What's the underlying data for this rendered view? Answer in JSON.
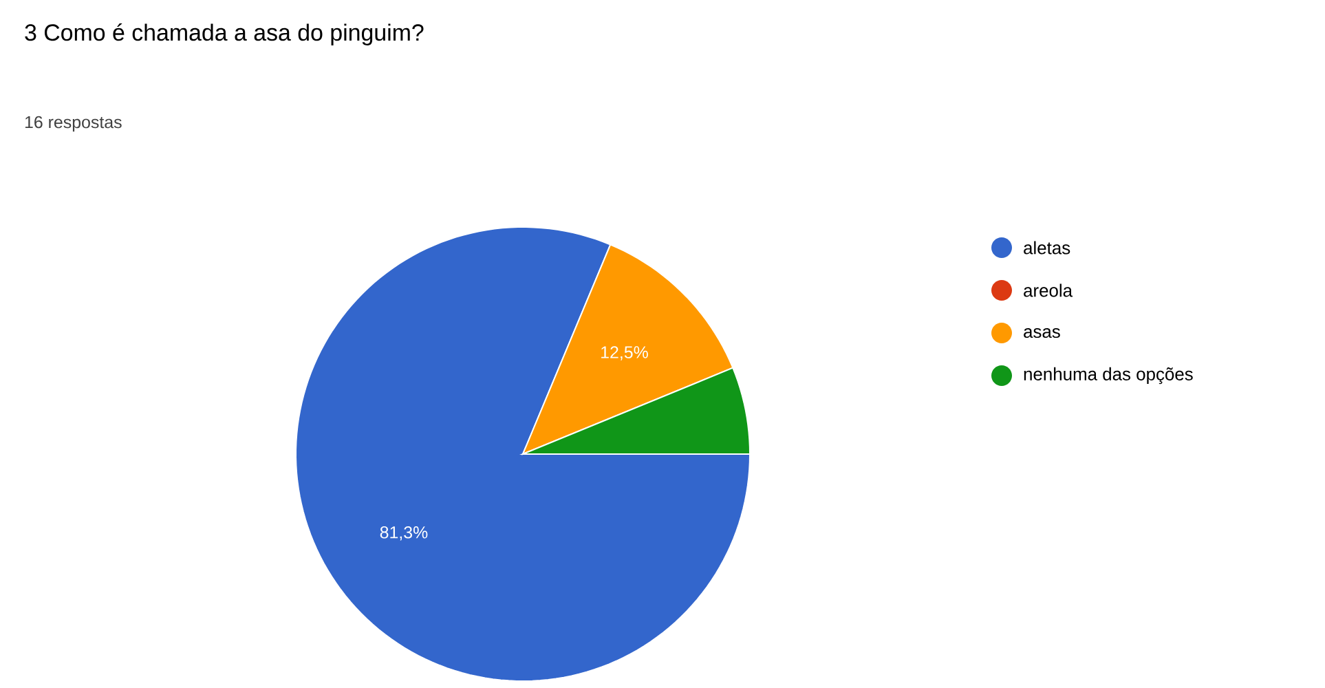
{
  "chart_data": {
    "type": "pie",
    "title": "3 Como é chamada a asa do pinguim?",
    "subtitle": "16 respostas",
    "categories": [
      "aletas",
      "areola",
      "asas",
      "nenhuma das opções"
    ],
    "values": [
      81.3,
      0,
      12.5,
      6.2
    ],
    "colors": [
      "#3366cc",
      "#dc3912",
      "#ff9900",
      "#109618"
    ],
    "value_labels": [
      "81,3%",
      null,
      "12,5%",
      null
    ],
    "legend": "right"
  }
}
